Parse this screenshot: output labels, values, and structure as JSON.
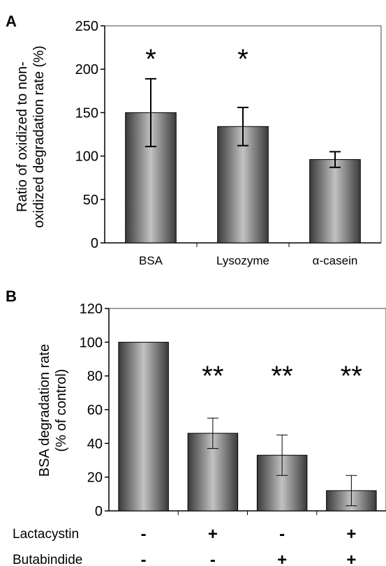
{
  "chart_data": [
    {
      "type": "bar",
      "panel_label": "A",
      "ylabel_lines": [
        "Ratio  of oxidized to non-",
        "oxidized  degradation rate (%)"
      ],
      "categories": [
        "BSA",
        "Lysozyme",
        "α-casein"
      ],
      "values": [
        150,
        134,
        96
      ],
      "errors": [
        39,
        22,
        9
      ],
      "annotations": [
        "*",
        "*",
        ""
      ],
      "ylim": [
        0,
        250
      ],
      "yticks": [
        "0",
        "50",
        "100",
        "150",
        "200",
        "250"
      ],
      "ytick_values": [
        0,
        50,
        100,
        150,
        200,
        250
      ],
      "grid": false
    },
    {
      "type": "bar",
      "panel_label": "B",
      "ylabel_lines": [
        "BSA degradation rate",
        "(% of control)"
      ],
      "categories": [
        "",
        "",
        "",
        ""
      ],
      "values": [
        100,
        46,
        33,
        12
      ],
      "errors": [
        0,
        9,
        12,
        9
      ],
      "annotations": [
        "",
        "**",
        "**",
        "**"
      ],
      "ylim": [
        0,
        120
      ],
      "yticks": [
        "0",
        "20",
        "40",
        "60",
        "80",
        "100",
        "120"
      ],
      "ytick_values": [
        0,
        20,
        40,
        60,
        80,
        100,
        120
      ],
      "grid": false,
      "conditions": [
        {
          "name": "Lactacystin",
          "marks": [
            "-",
            "+",
            "-",
            "+"
          ]
        },
        {
          "name": "Butabindide",
          "marks": [
            "-",
            "-",
            "+",
            "+"
          ]
        }
      ]
    }
  ],
  "colors": {
    "bar_dark": "#3d3d3d",
    "bar_light": "#bdbdbd",
    "axis": "#000000",
    "frame": "#808080"
  }
}
